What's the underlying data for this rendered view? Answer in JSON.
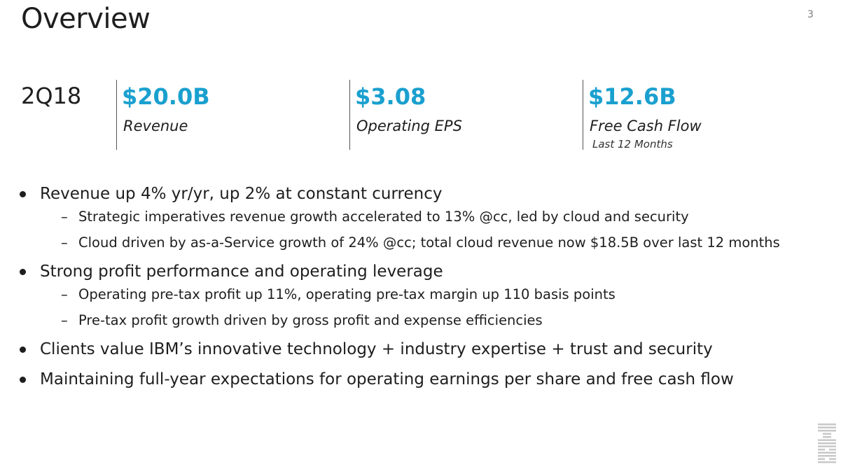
{
  "slide": {
    "title": "Overview",
    "page_number": "3"
  },
  "period": "2Q18",
  "metrics": [
    {
      "value": "$20.0B",
      "label": "Revenue",
      "note": ""
    },
    {
      "value": "$3.08",
      "label": "Operating EPS",
      "note": ""
    },
    {
      "value": "$12.6B",
      "label": "Free Cash Flow",
      "note": "Last 12 Months"
    }
  ],
  "bullets": [
    {
      "text": "Revenue up 4% yr/yr, up 2% at constant currency",
      "subs": [
        "Strategic imperatives revenue growth accelerated to 13% @cc, led by cloud and security",
        "Cloud driven by as-a-Service growth of 24% @cc; total cloud revenue now $18.5B over last 12 months"
      ]
    },
    {
      "text": "Strong profit performance and operating leverage",
      "subs": [
        "Operating pre-tax profit up 11%, operating pre-tax margin up 110 basis points",
        "Pre-tax profit growth driven by gross profit and expense efficiencies"
      ]
    },
    {
      "text": "Clients value IBM’s innovative technology + industry expertise + trust and security",
      "subs": []
    },
    {
      "text": "Maintaining full-year expectations for operating earnings per share and free cash flow",
      "subs": []
    }
  ],
  "sub_marker": "–",
  "colors": {
    "accent": "#1aa0cf",
    "text": "#1e1e1e",
    "logo": "#c8c8c8"
  },
  "logo": {
    "icon": "ibm-logo-icon",
    "text": "IBM"
  }
}
